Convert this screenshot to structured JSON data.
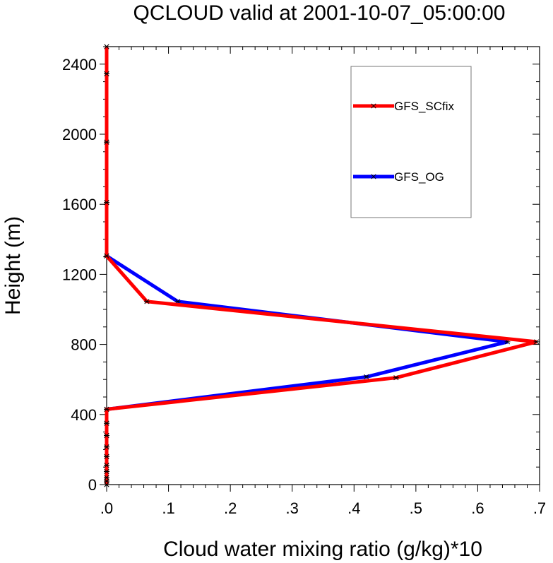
{
  "chart_data": {
    "type": "line",
    "title": "QCLOUD valid at 2001-10-07_05:00:00",
    "xlabel": "Cloud water mixing ratio (g/kg)*10",
    "ylabel": "Height (m)",
    "xlim": [
      0,
      0.7
    ],
    "ylim": [
      0,
      2500
    ],
    "x_ticks": [
      0,
      0.1,
      0.2,
      0.3,
      0.4,
      0.5,
      0.6,
      0.7
    ],
    "x_tick_labels": [
      ".0",
      ".1",
      ".2",
      ".3",
      ".4",
      ".5",
      ".6",
      ".7"
    ],
    "y_ticks": [
      0,
      400,
      800,
      1200,
      1600,
      2000,
      2400
    ],
    "y_tick_labels": [
      "0",
      "400",
      "800",
      "1200",
      "1600",
      "2000",
      "2400"
    ],
    "grid": false,
    "legend_position": "top-right",
    "series": [
      {
        "name": "GFS_SCfix",
        "color": "#ff0000",
        "points": [
          [
            0,
            0
          ],
          [
            0,
            20
          ],
          [
            0,
            40
          ],
          [
            0,
            75
          ],
          [
            0,
            110
          ],
          [
            0,
            160
          ],
          [
            0,
            215
          ],
          [
            0,
            280
          ],
          [
            0,
            350
          ],
          [
            0,
            430
          ],
          [
            0.468,
            610
          ],
          [
            0.695,
            815
          ],
          [
            0.065,
            1045
          ],
          [
            0,
            1305
          ],
          [
            0,
            1610
          ],
          [
            0,
            1955
          ],
          [
            0,
            2345
          ],
          [
            0,
            2500
          ]
        ]
      },
      {
        "name": "GFS_OG",
        "color": "#0000ff",
        "points": [
          [
            0,
            0
          ],
          [
            0,
            20
          ],
          [
            0,
            40
          ],
          [
            0,
            75
          ],
          [
            0,
            110
          ],
          [
            0,
            160
          ],
          [
            0,
            215
          ],
          [
            0,
            280
          ],
          [
            0,
            350
          ],
          [
            0,
            430
          ],
          [
            0.42,
            615
          ],
          [
            0.648,
            815
          ],
          [
            0.115,
            1045
          ],
          [
            0,
            1305
          ],
          [
            0,
            1610
          ],
          [
            0,
            1955
          ],
          [
            0,
            2345
          ],
          [
            0,
            2500
          ]
        ]
      }
    ]
  }
}
